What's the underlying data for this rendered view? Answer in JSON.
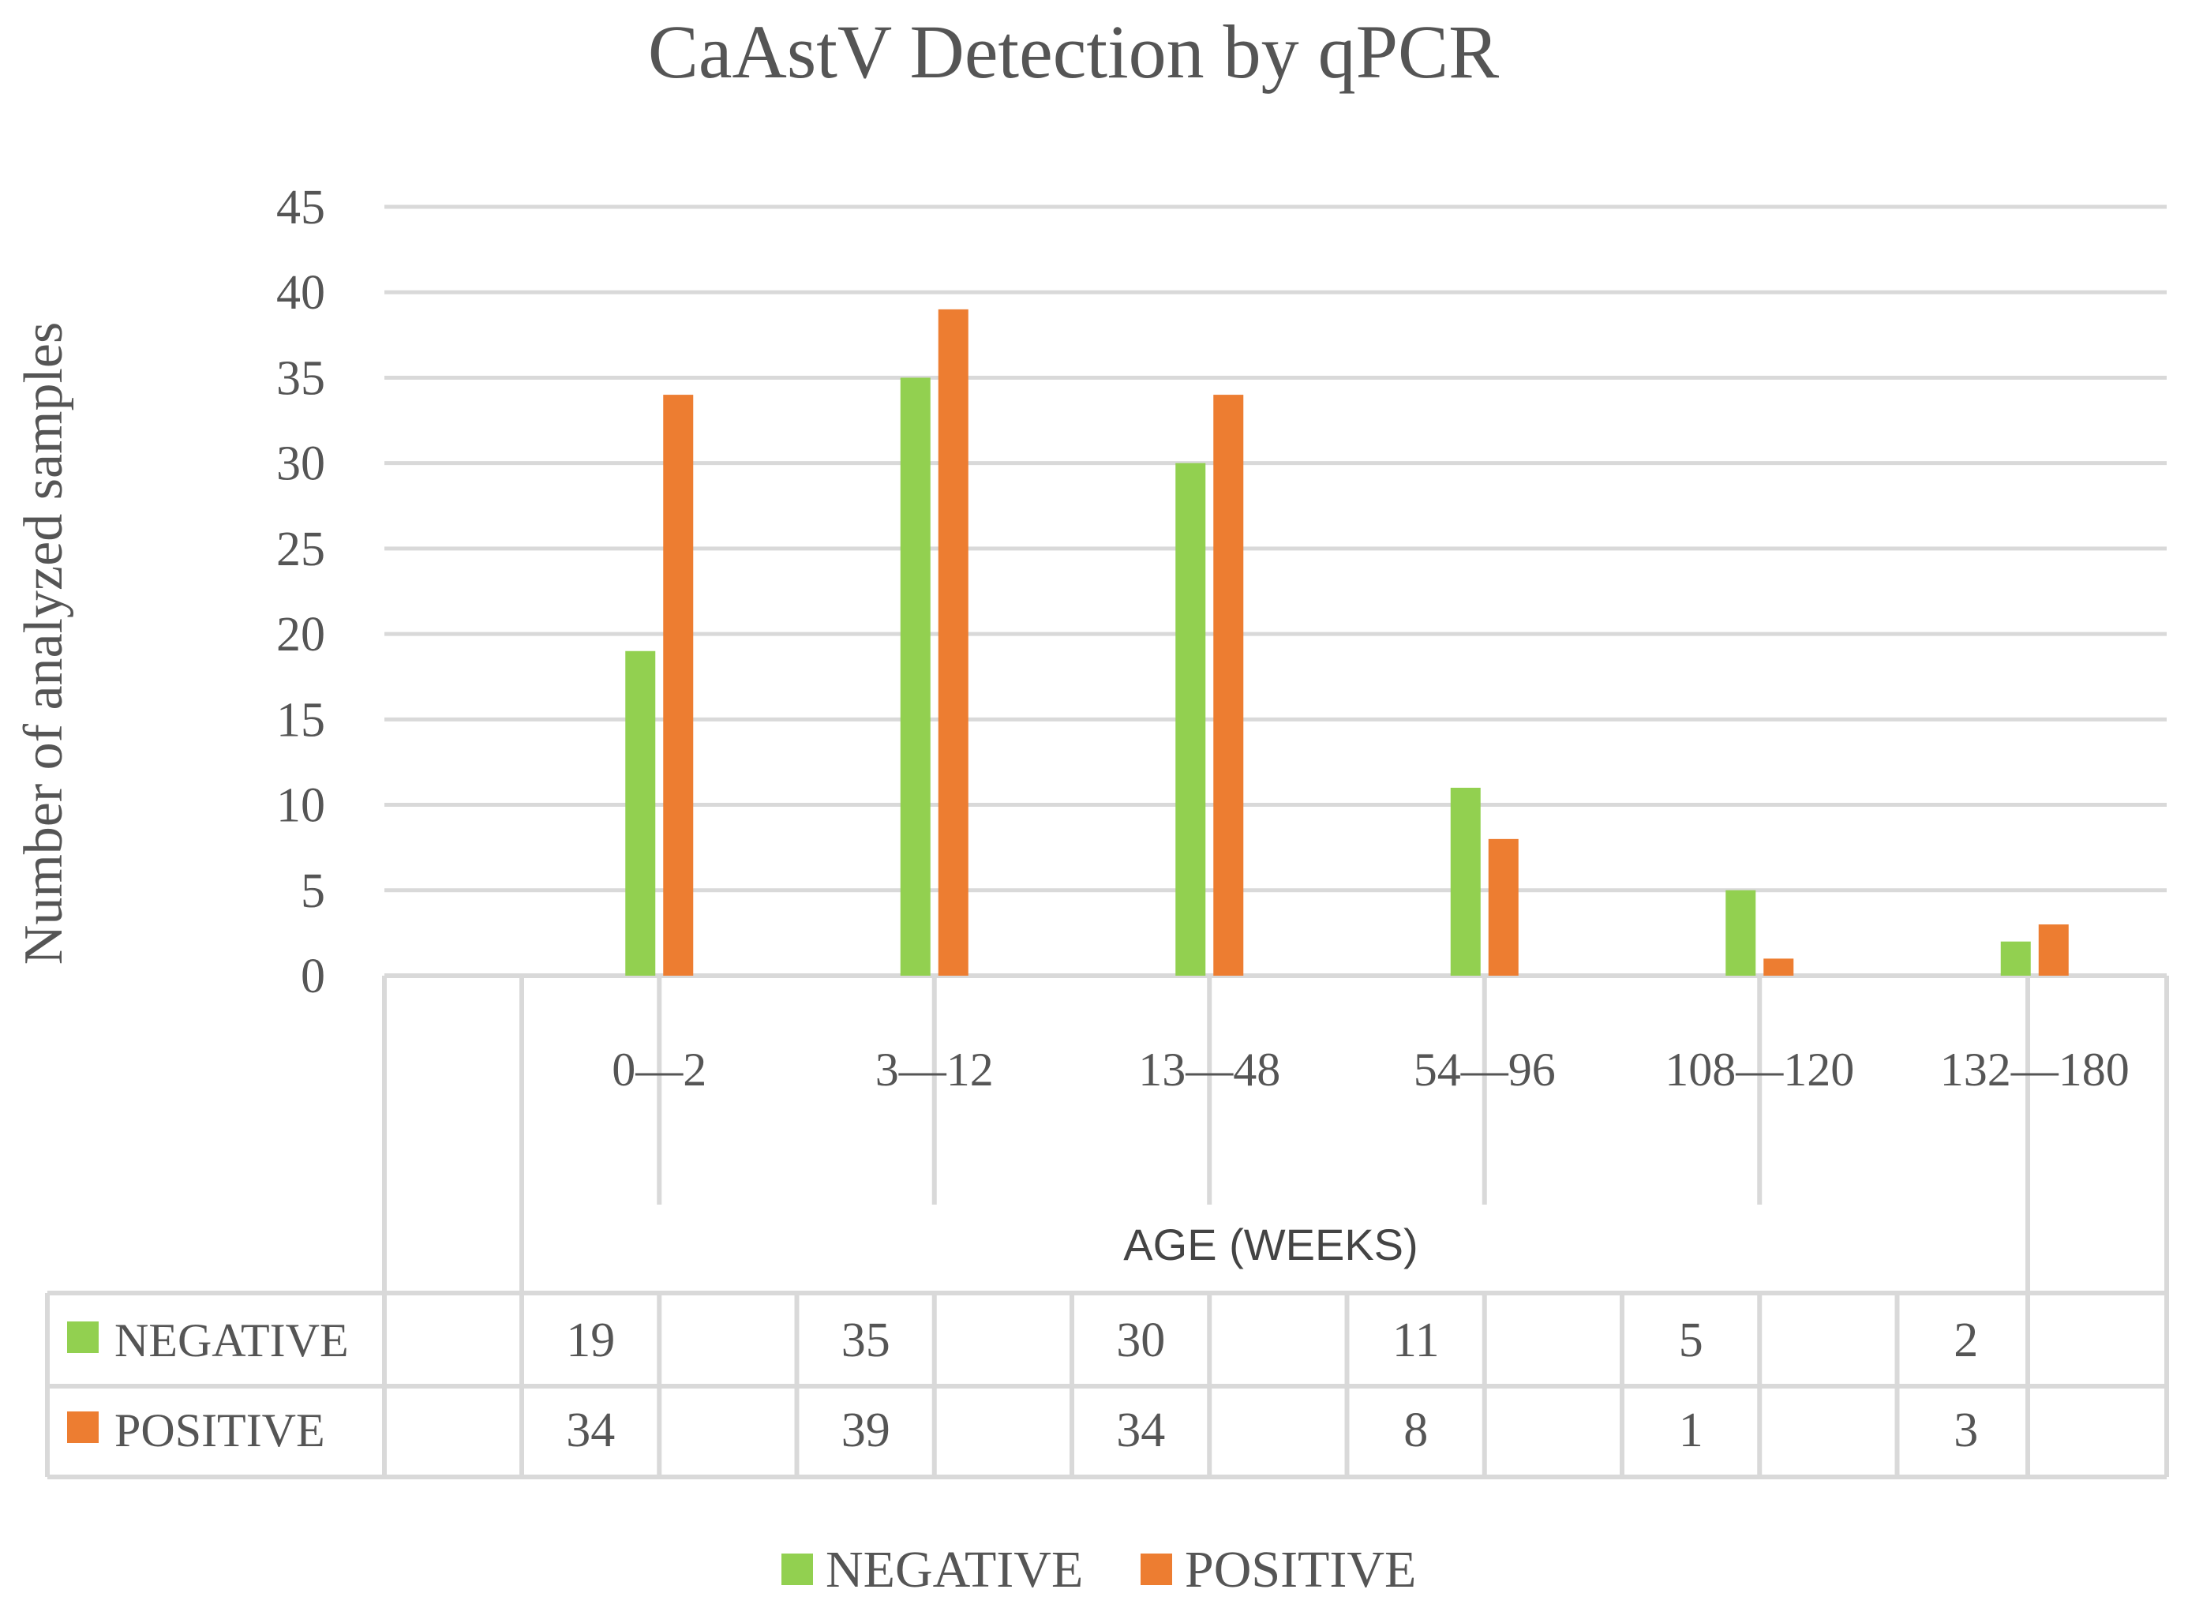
{
  "chart_data": {
    "type": "bar",
    "title": "CaAstV Detection by qPCR",
    "xlabel": "AGE (WEEKS)",
    "ylabel": "Number of analyzed samples",
    "ylim": [
      0,
      45
    ],
    "yticks": [
      "0",
      "5",
      "10",
      "15",
      "20",
      "25",
      "30",
      "35",
      "40",
      "45"
    ],
    "grid": true,
    "legend_position": "bottom-center",
    "categories": [
      "0—2",
      "3—12",
      "13—48",
      "54—96",
      "108—120",
      "132—180"
    ],
    "series": [
      {
        "name": "NEGATIVE",
        "color": "#92d050",
        "values": [
          19,
          35,
          30,
          11,
          5,
          2
        ],
        "table_values": [
          "19",
          "35",
          "30",
          "11",
          "5",
          "2"
        ]
      },
      {
        "name": "POSITIVE",
        "color": "#ed7d31",
        "values": [
          34,
          39,
          34,
          8,
          1,
          3
        ],
        "table_values": [
          "34",
          "39",
          "34",
          "8",
          "1",
          "3"
        ]
      }
    ],
    "data_table": true
  }
}
